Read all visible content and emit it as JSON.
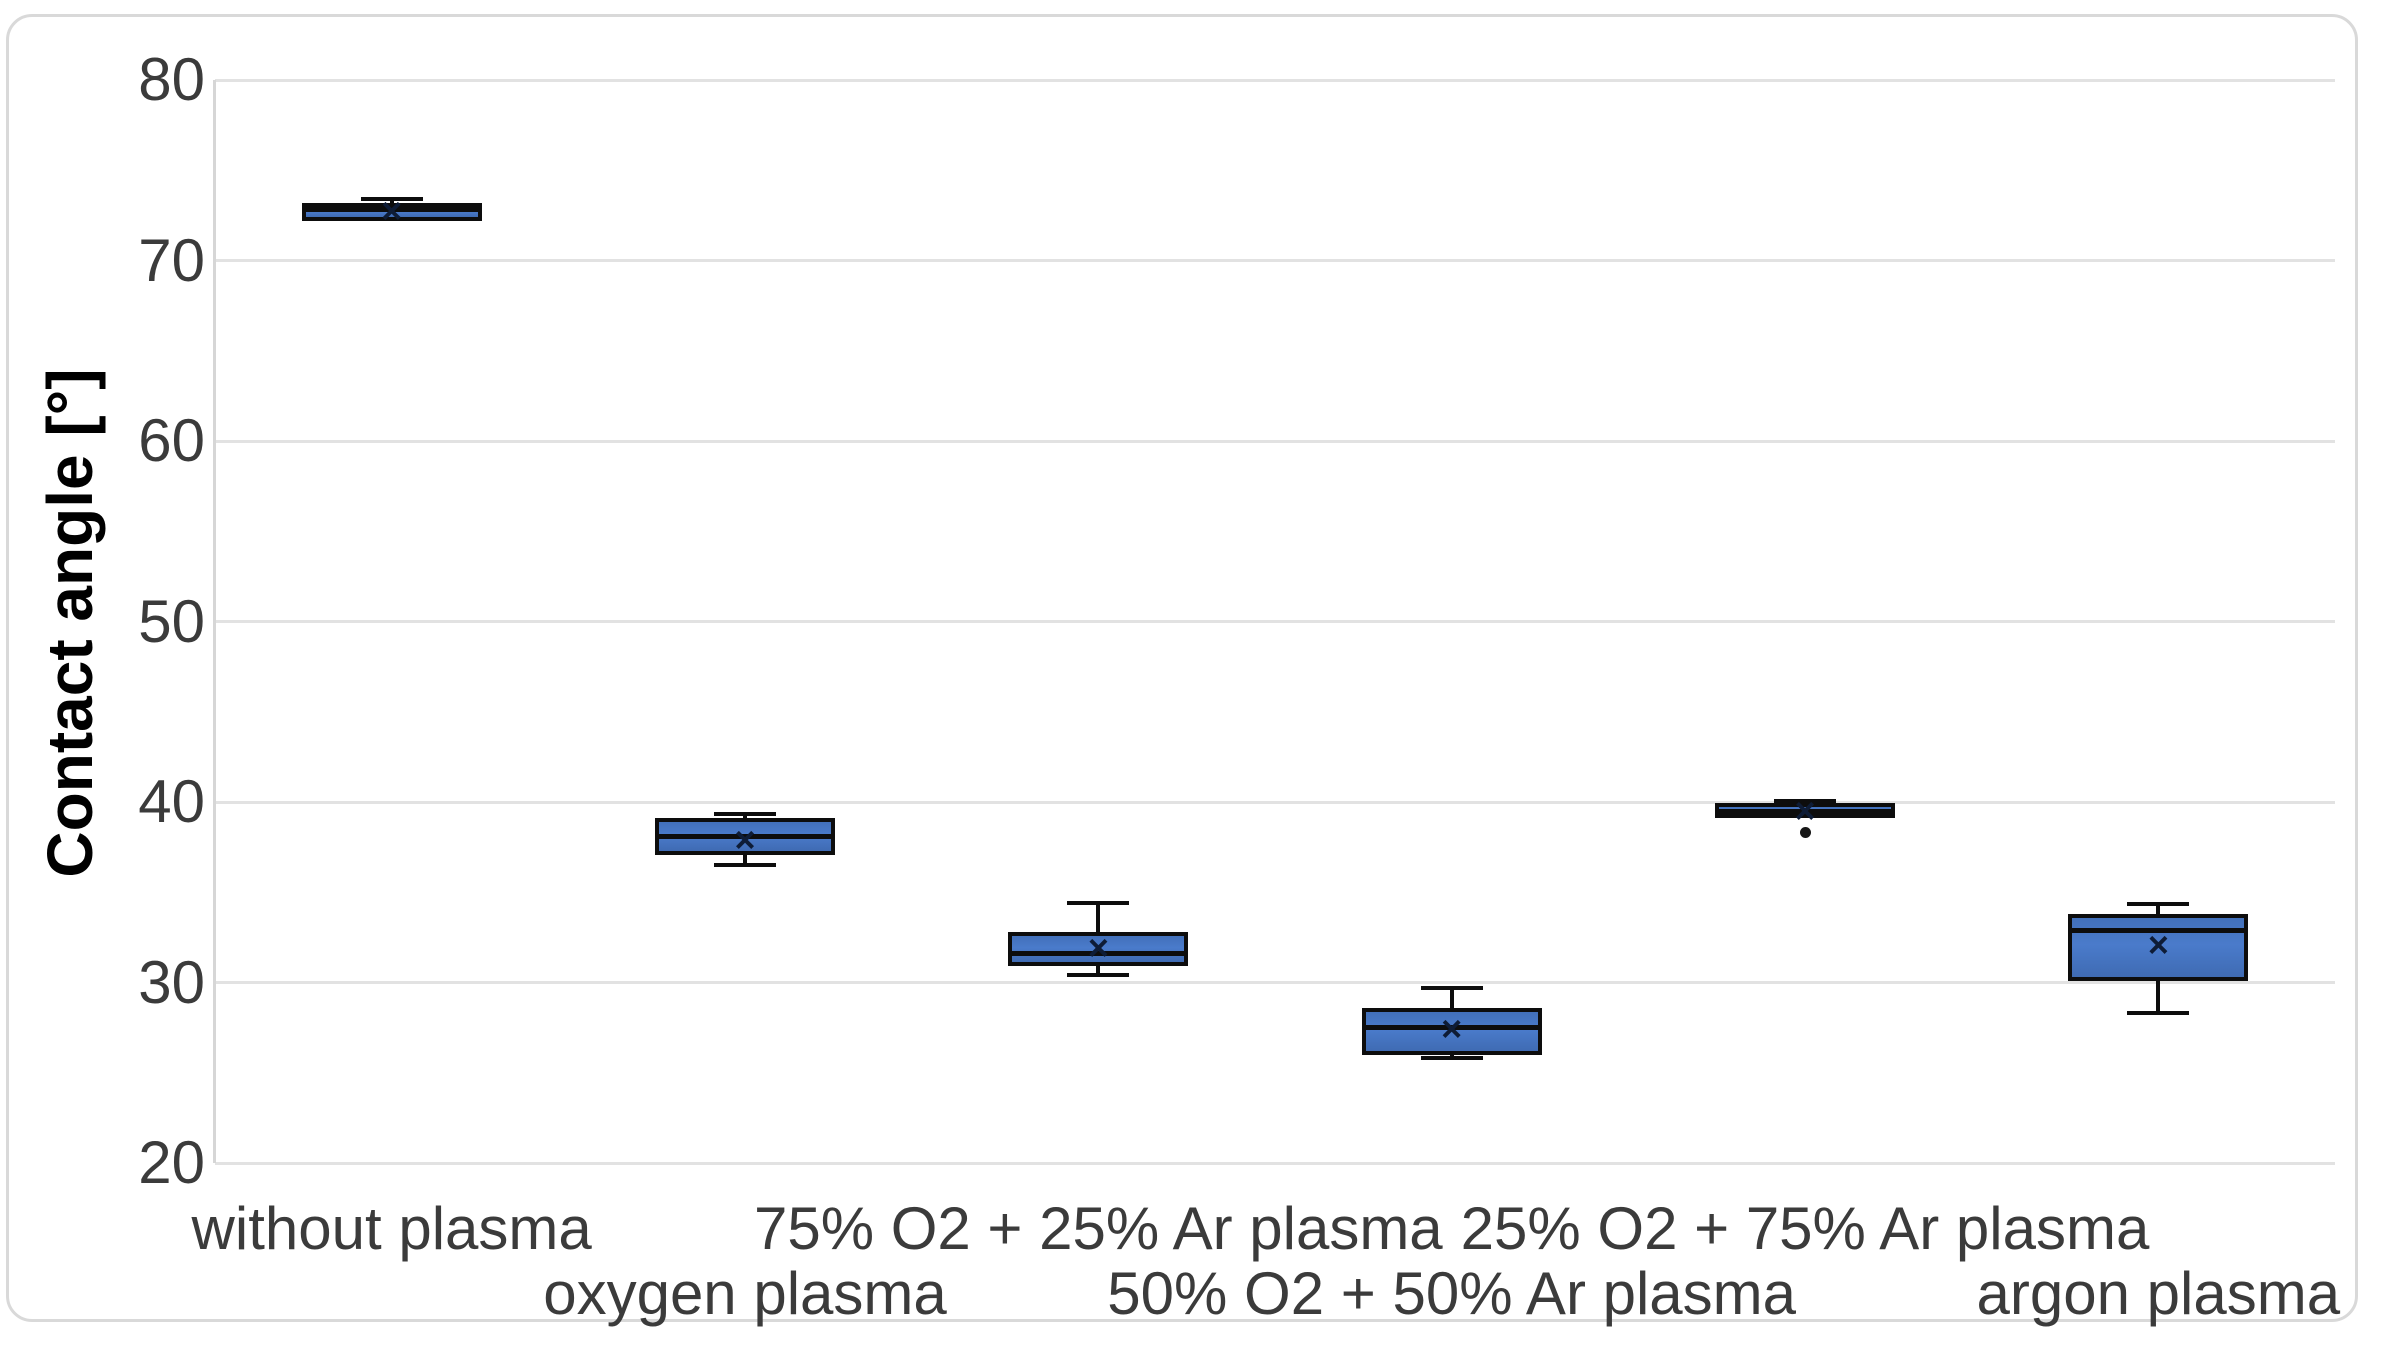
{
  "chart_data": {
    "type": "box",
    "title": "",
    "xlabel": "",
    "ylabel": "Contact angle [°]",
    "ylim": [
      20,
      80
    ],
    "yticks": [
      80,
      70,
      60,
      50,
      40,
      30,
      20
    ],
    "grid": true,
    "legend": "none",
    "categories": [
      "without plasma",
      "oxygen plasma",
      "75% O2 + 25% Ar plasma",
      "50% O2 + 50% Ar plasma",
      "25% O2 + 75% Ar plasma",
      "argon plasma"
    ],
    "series": [
      {
        "name": "without plasma",
        "whisker_low": 72.3,
        "q1": 72.3,
        "median": 72.8,
        "q3": 73.05,
        "whisker_high": 73.4,
        "mean": 72.75,
        "outliers": []
      },
      {
        "name": "oxygen plasma",
        "whisker_low": 36.5,
        "q1": 37.2,
        "median": 38.1,
        "q3": 39.0,
        "whisker_high": 39.35,
        "mean": 37.9,
        "outliers": []
      },
      {
        "name": "75% O2 + 25% Ar plasma",
        "whisker_low": 30.4,
        "q1": 31.0,
        "median": 31.6,
        "q3": 32.7,
        "whisker_high": 34.4,
        "mean": 31.9,
        "outliers": []
      },
      {
        "name": "50% O2 + 50% Ar plasma",
        "whisker_low": 25.8,
        "q1": 26.1,
        "median": 27.5,
        "q3": 28.5,
        "whisker_high": 29.7,
        "mean": 27.4,
        "outliers": []
      },
      {
        "name": "25% O2 + 75% Ar plasma",
        "whisker_low": 39.1,
        "q1": 39.2,
        "median": 39.5,
        "q3": 39.85,
        "whisker_high": 40.05,
        "mean": 39.5,
        "outliers": [
          38.3
        ]
      },
      {
        "name": "argon plasma",
        "whisker_low": 28.3,
        "q1": 30.2,
        "median": 32.9,
        "q3": 33.7,
        "whisker_high": 34.35,
        "mean": 32.1,
        "outliers": []
      }
    ],
    "colors": {
      "box_fill": "#4472c4",
      "box_border": "#0d0d0d",
      "gridline": "#e2e2e2",
      "axis_line": "#d6d6d6",
      "tick_label": "#3b3b3b",
      "mean_marker": "#0e1c36",
      "outlier": "#171717"
    },
    "mean_marker_glyph": "×"
  }
}
